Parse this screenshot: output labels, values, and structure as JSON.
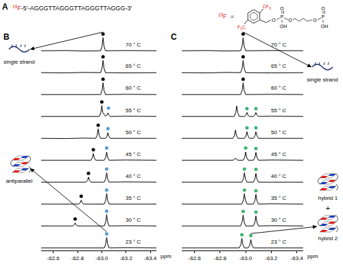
{
  "panel_a": {
    "label": "A",
    "probe": "19F",
    "sequence": "-5'-AGGGTTAGGGTTAGGGTTAGGG-3'",
    "definition_probe": "19F",
    "equals": "=",
    "structure": {
      "substituents": [
        "CF3",
        "F3C"
      ],
      "chain": [
        "O",
        "P",
        "O",
        "OH",
        "O",
        "O",
        "P",
        "O",
        "OH"
      ]
    }
  },
  "chart_data": [
    {
      "panel": "B",
      "type": "line",
      "xlabel": "ppm",
      "xlim": [
        -62.5,
        -63.45
      ],
      "xticks": [
        -62.6,
        -62.8,
        {
          "value": -63.0,
          "label": "-63.0"
        },
        -63.2,
        -63.4
      ],
      "ylim": [
        0,
        1
      ],
      "tick_labels": "x",
      "grid": false,
      "annotations": [
        "single strand",
        "antiparallel"
      ],
      "series": [
        {
          "name": "70 ° C",
          "color": "#000000",
          "x": [
            -62.5,
            -62.7,
            -62.85,
            -62.99,
            -63.002,
            -63.01,
            -63.018,
            -63.03,
            -63.2,
            -63.45
          ],
          "values": [
            0.12,
            0.13,
            0.11,
            0.12,
            0.33,
            0.72,
            0.33,
            0.12,
            0.13,
            0.12
          ],
          "dots": [
            {
              "x": -63.01,
              "y": 0.88,
              "color": "#000000"
            }
          ]
        },
        {
          "name": "65 ° C",
          "color": "#000000",
          "x": [
            -62.5,
            -62.7,
            -62.85,
            -62.99,
            -63.002,
            -63.01,
            -63.018,
            -63.03,
            -63.2,
            -63.45
          ],
          "values": [
            0.12,
            0.11,
            0.13,
            0.12,
            0.32,
            0.68,
            0.32,
            0.12,
            0.11,
            0.12
          ],
          "dots": [
            {
              "x": -63.01,
              "y": 0.84,
              "color": "#000000"
            }
          ]
        },
        {
          "name": "60 ° C",
          "color": "#000000",
          "x": [
            -62.5,
            -62.7,
            -62.85,
            -62.99,
            -63.002,
            -63.01,
            -63.018,
            -63.03,
            -63.2,
            -63.45
          ],
          "values": [
            0.12,
            0.13,
            0.12,
            0.12,
            0.31,
            0.66,
            0.31,
            0.12,
            0.13,
            0.12
          ],
          "dots": [
            {
              "x": -63.01,
              "y": 0.82,
              "color": "#000000"
            }
          ]
        },
        {
          "name": "55 ° C",
          "color": "#000000",
          "x": [
            -62.5,
            -62.7,
            -62.85,
            -62.98,
            -62.992,
            -63.0,
            -63.008,
            -63.03,
            -63.042,
            -63.05,
            -63.058,
            -63.07,
            -63.2,
            -63.45
          ],
          "values": [
            0.12,
            0.13,
            0.12,
            0.12,
            0.3,
            0.62,
            0.3,
            0.13,
            0.18,
            0.28,
            0.18,
            0.12,
            0.13,
            0.12
          ],
          "dots": [
            {
              "x": -63.0,
              "y": 0.78,
              "color": "#000000"
            },
            {
              "x": -63.055,
              "y": 0.5,
              "color": "#5b9bd5"
            }
          ]
        },
        {
          "name": "50 ° C",
          "color": "#000000",
          "x": [
            -62.5,
            -62.7,
            -62.85,
            -62.95,
            -62.962,
            -62.97,
            -62.978,
            -62.99,
            -63.03,
            -63.042,
            -63.05,
            -63.058,
            -63.07,
            -63.2,
            -63.45
          ],
          "values": [
            0.12,
            0.11,
            0.13,
            0.12,
            0.27,
            0.55,
            0.27,
            0.12,
            0.12,
            0.21,
            0.38,
            0.21,
            0.12,
            0.12,
            0.12
          ],
          "dots": [
            {
              "x": -62.97,
              "y": 0.72,
              "color": "#000000"
            },
            {
              "x": -63.05,
              "y": 0.56,
              "color": "#5b9bd5"
            }
          ]
        },
        {
          "name": "45 ° C",
          "color": "#000000",
          "x": [
            -62.5,
            -62.7,
            -62.85,
            -62.91,
            -62.922,
            -62.93,
            -62.938,
            -62.95,
            -63.02,
            -63.032,
            -63.04,
            -63.048,
            -63.06,
            -63.2,
            -63.45
          ],
          "values": [
            0.12,
            0.13,
            0.12,
            0.12,
            0.23,
            0.42,
            0.23,
            0.12,
            0.12,
            0.25,
            0.5,
            0.25,
            0.12,
            0.13,
            0.12
          ],
          "dots": [
            {
              "x": -62.93,
              "y": 0.6,
              "color": "#000000"
            },
            {
              "x": -63.04,
              "y": 0.68,
              "color": "#5b9bd5"
            }
          ]
        },
        {
          "name": "40 ° C",
          "color": "#000000",
          "x": [
            -62.5,
            -62.7,
            -62.87,
            -62.882,
            -62.89,
            -62.898,
            -62.91,
            -63.02,
            -63.032,
            -63.04,
            -63.048,
            -63.06,
            -63.2,
            -63.45
          ],
          "values": [
            0.12,
            0.12,
            0.12,
            0.2,
            0.35,
            0.2,
            0.12,
            0.12,
            0.27,
            0.55,
            0.27,
            0.12,
            0.13,
            0.12
          ],
          "dots": [
            {
              "x": -62.89,
              "y": 0.52,
              "color": "#000000"
            },
            {
              "x": -63.04,
              "y": 0.72,
              "color": "#5b9bd5"
            }
          ]
        },
        {
          "name": "35 ° C",
          "color": "#000000",
          "x": [
            -62.5,
            -62.7,
            -62.81,
            -62.822,
            -62.83,
            -62.838,
            -62.85,
            -63.02,
            -63.032,
            -63.04,
            -63.048,
            -63.06,
            -63.2,
            -63.45
          ],
          "values": [
            0.12,
            0.13,
            0.12,
            0.18,
            0.3,
            0.18,
            0.12,
            0.12,
            0.29,
            0.6,
            0.29,
            0.12,
            0.12,
            0.12
          ],
          "dots": [
            {
              "x": -62.83,
              "y": 0.48,
              "color": "#000000"
            },
            {
              "x": -63.04,
              "y": 0.76,
              "color": "#5b9bd5"
            }
          ]
        },
        {
          "name": "30 ° C",
          "color": "#000000",
          "x": [
            -62.5,
            -62.7,
            -62.76,
            -62.772,
            -62.78,
            -62.788,
            -62.8,
            -63.02,
            -63.032,
            -63.04,
            -63.048,
            -63.06,
            -63.2,
            -63.45
          ],
          "values": [
            0.12,
            0.12,
            0.12,
            0.17,
            0.26,
            0.17,
            0.12,
            0.12,
            0.3,
            0.64,
            0.3,
            0.12,
            0.13,
            0.12
          ],
          "dots": [
            {
              "x": -62.78,
              "y": 0.44,
              "color": "#000000"
            },
            {
              "x": -63.04,
              "y": 0.8,
              "color": "#5b9bd5"
            }
          ]
        },
        {
          "name": "23 ° C",
          "color": "#000000",
          "x": [
            -62.5,
            -62.7,
            -62.85,
            -63.02,
            -63.032,
            -63.04,
            -63.048,
            -63.06,
            -63.2,
            -63.45
          ],
          "values": [
            0.12,
            0.13,
            0.12,
            0.12,
            0.29,
            0.6,
            0.29,
            0.12,
            0.13,
            0.12
          ],
          "dots": [
            {
              "x": -63.04,
              "y": 0.76,
              "color": "#5b9bd5"
            }
          ]
        }
      ]
    },
    {
      "panel": "C",
      "type": "line",
      "xlabel": "ppm",
      "xlim": [
        -62.5,
        -63.45
      ],
      "xticks": [
        -62.6,
        -62.8,
        {
          "value": -63.0,
          "label": "-63.0"
        },
        -63.2,
        -63.4
      ],
      "ylim": [
        0,
        1
      ],
      "tick_labels": "x",
      "grid": false,
      "annotations": [
        "single strand",
        "hybrid 1",
        "+",
        "hybrid 2"
      ],
      "series": [
        {
          "name": "70 ° C",
          "color": "#000000",
          "x": [
            -62.5,
            -62.7,
            -62.85,
            -62.96,
            -62.972,
            -62.98,
            -62.988,
            -63.0,
            -63.2,
            -63.45
          ],
          "values": [
            0.12,
            0.13,
            0.11,
            0.12,
            0.33,
            0.72,
            0.33,
            0.12,
            0.13,
            0.12
          ],
          "dots": [
            {
              "x": -62.98,
              "y": 0.88,
              "color": "#000000"
            }
          ]
        },
        {
          "name": "65 ° C",
          "color": "#000000",
          "x": [
            -62.5,
            -62.7,
            -62.85,
            -62.96,
            -62.972,
            -62.98,
            -62.988,
            -63.0,
            -63.2,
            -63.45
          ],
          "values": [
            0.12,
            0.11,
            0.13,
            0.12,
            0.32,
            0.68,
            0.32,
            0.12,
            0.11,
            0.12
          ],
          "dots": [
            {
              "x": -62.98,
              "y": 0.84,
              "color": "#000000"
            }
          ]
        },
        {
          "name": "60 ° C",
          "color": "#000000",
          "x": [
            -62.5,
            -62.7,
            -62.85,
            -62.96,
            -62.972,
            -62.98,
            -62.988,
            -63.0,
            -63.2,
            -63.45
          ],
          "values": [
            0.12,
            0.13,
            0.12,
            0.12,
            0.31,
            0.66,
            0.31,
            0.12,
            0.13,
            0.12
          ],
          "dots": [
            {
              "x": -62.98,
              "y": 0.82,
              "color": "#000000"
            }
          ]
        },
        {
          "name": "55 ° C",
          "color": "#000000",
          "x": [
            -62.5,
            -62.7,
            -62.91,
            -62.922,
            -62.93,
            -62.938,
            -62.95,
            -62.99,
            -63.002,
            -63.01,
            -63.018,
            -63.03,
            -63.06,
            -63.072,
            -63.08,
            -63.088,
            -63.1,
            -63.2,
            -63.45
          ],
          "values": [
            0.12,
            0.13,
            0.12,
            0.29,
            0.6,
            0.29,
            0.12,
            0.12,
            0.18,
            0.3,
            0.18,
            0.12,
            0.12,
            0.18,
            0.3,
            0.18,
            0.12,
            0.13,
            0.12
          ],
          "dots": [
            {
              "x": -63.01,
              "y": 0.48,
              "color": "#3cb371"
            },
            {
              "x": -63.08,
              "y": 0.48,
              "color": "#3cb371"
            }
          ]
        },
        {
          "name": "50 ° C",
          "color": "#000000",
          "x": [
            -62.5,
            -62.7,
            -62.9,
            -62.912,
            -62.92,
            -62.928,
            -62.94,
            -62.99,
            -63.002,
            -63.01,
            -63.018,
            -63.03,
            -63.06,
            -63.072,
            -63.08,
            -63.088,
            -63.1,
            -63.2,
            -63.45
          ],
          "values": [
            0.12,
            0.12,
            0.12,
            0.25,
            0.5,
            0.25,
            0.12,
            0.12,
            0.23,
            0.42,
            0.23,
            0.12,
            0.12,
            0.23,
            0.42,
            0.23,
            0.12,
            0.12,
            0.12
          ],
          "dots": [
            {
              "x": -63.01,
              "y": 0.6,
              "color": "#3cb371"
            },
            {
              "x": -63.08,
              "y": 0.6,
              "color": "#3cb371"
            }
          ]
        },
        {
          "name": "45 ° C",
          "color": "#000000",
          "x": [
            -62.5,
            -62.7,
            -62.9,
            -62.912,
            -62.92,
            -62.928,
            -62.94,
            -62.98,
            -62.992,
            -63.0,
            -63.008,
            -63.02,
            -63.06,
            -63.072,
            -63.08,
            -63.088,
            -63.1,
            -63.2,
            -63.45
          ],
          "values": [
            0.12,
            0.13,
            0.12,
            0.16,
            0.22,
            0.16,
            0.12,
            0.12,
            0.25,
            0.5,
            0.25,
            0.12,
            0.12,
            0.25,
            0.48,
            0.25,
            0.12,
            0.13,
            0.12
          ],
          "dots": [
            {
              "x": -63.0,
              "y": 0.68,
              "color": "#3cb371"
            },
            {
              "x": -63.08,
              "y": 0.66,
              "color": "#3cb371"
            }
          ]
        },
        {
          "name": "40 ° C",
          "color": "#000000",
          "x": [
            -62.5,
            -62.7,
            -62.85,
            -62.97,
            -62.982,
            -62.99,
            -62.998,
            -63.01,
            -63.06,
            -63.072,
            -63.08,
            -63.088,
            -63.1,
            -63.2,
            -63.45
          ],
          "values": [
            0.12,
            0.12,
            0.13,
            0.12,
            0.27,
            0.55,
            0.27,
            0.12,
            0.12,
            0.26,
            0.52,
            0.26,
            0.12,
            0.12,
            0.12
          ],
          "dots": [
            {
              "x": -62.99,
              "y": 0.72,
              "color": "#3cb371"
            },
            {
              "x": -63.08,
              "y": 0.7,
              "color": "#3cb371"
            }
          ]
        },
        {
          "name": "35 ° C",
          "color": "#000000",
          "x": [
            -62.5,
            -62.7,
            -62.85,
            -62.97,
            -62.982,
            -62.99,
            -62.998,
            -63.01,
            -63.06,
            -63.072,
            -63.08,
            -63.088,
            -63.1,
            -63.2,
            -63.45
          ],
          "values": [
            0.12,
            0.13,
            0.12,
            0.12,
            0.29,
            0.6,
            0.29,
            0.12,
            0.12,
            0.27,
            0.56,
            0.27,
            0.12,
            0.13,
            0.12
          ],
          "dots": [
            {
              "x": -62.99,
              "y": 0.76,
              "color": "#3cb371"
            },
            {
              "x": -63.08,
              "y": 0.73,
              "color": "#3cb371"
            }
          ]
        },
        {
          "name": "30 ° C",
          "color": "#000000",
          "x": [
            -62.5,
            -62.7,
            -62.85,
            -62.96,
            -62.972,
            -62.98,
            -62.988,
            -63.0,
            -63.06,
            -63.072,
            -63.08,
            -63.088,
            -63.1,
            -63.2,
            -63.45
          ],
          "values": [
            0.12,
            0.13,
            0.12,
            0.12,
            0.3,
            0.62,
            0.3,
            0.12,
            0.12,
            0.28,
            0.58,
            0.28,
            0.12,
            0.13,
            0.12
          ],
          "dots": [
            {
              "x": -62.98,
              "y": 0.78,
              "color": "#3cb371"
            },
            {
              "x": -63.08,
              "y": 0.75,
              "color": "#3cb371"
            }
          ]
        },
        {
          "name": "23 ° C",
          "color": "#000000",
          "x": [
            -62.5,
            -62.7,
            -62.85,
            -62.95,
            -62.962,
            -62.97,
            -62.978,
            -62.99,
            -63.02,
            -63.032,
            -63.04,
            -63.048,
            -63.06,
            -63.2,
            -63.45
          ],
          "values": [
            0.12,
            0.12,
            0.13,
            0.12,
            0.27,
            0.55,
            0.27,
            0.12,
            0.12,
            0.25,
            0.5,
            0.25,
            0.12,
            0.12,
            0.12
          ],
          "dots": [
            {
              "x": -62.97,
              "y": 0.72,
              "color": "#3cb371"
            },
            {
              "x": -63.04,
              "y": 0.68,
              "color": "#3cb371"
            }
          ]
        }
      ]
    }
  ]
}
